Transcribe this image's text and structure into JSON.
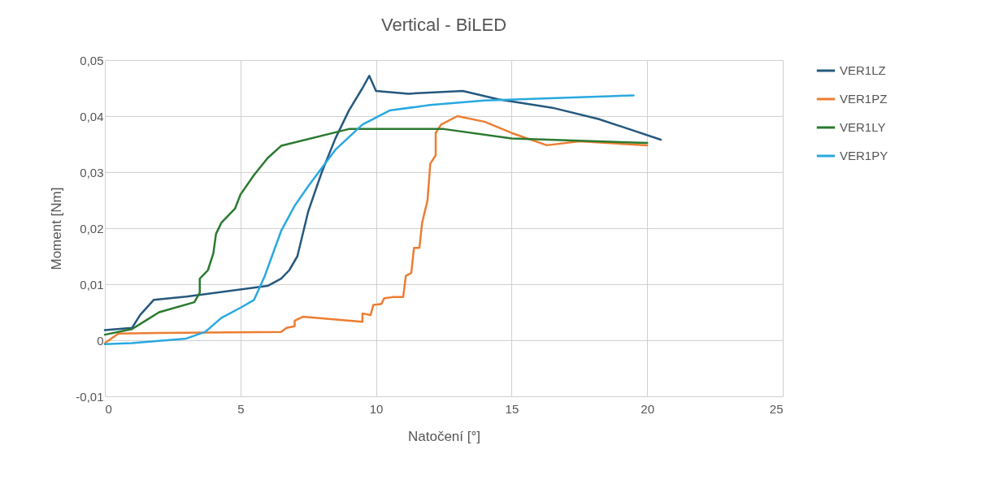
{
  "chart_data": {
    "type": "line",
    "title": "Vertical - BiLED",
    "xlabel": "Natočení [°]",
    "ylabel": "Moment [Nm]",
    "xlim": [
      0,
      25
    ],
    "xticks": [
      0,
      5,
      10,
      15,
      20,
      25
    ],
    "ylim": [
      -0.01,
      0.05
    ],
    "yticks": [
      {
        "value": -0.01,
        "label": "-0,01"
      },
      0,
      {
        "value": 0.01,
        "label": "0,01"
      },
      {
        "value": 0.02,
        "label": "0,02"
      },
      {
        "value": 0.03,
        "label": "0,03"
      },
      {
        "value": 0.04,
        "label": "0,04"
      },
      {
        "value": 0.05,
        "label": "0,05"
      }
    ],
    "grid": true,
    "legend": "right",
    "marker": "none",
    "line_style": "solid",
    "series": [
      {
        "name": "VER1LZ",
        "color": "#25587e",
        "x": [
          0,
          1,
          1.3,
          1.8,
          3,
          6,
          6.5,
          6.8,
          7.1,
          7.5,
          8,
          8.5,
          9,
          9.5,
          9.75,
          10,
          11.2,
          13.2,
          14.5,
          16.5,
          18.2,
          20.5
        ],
        "values": [
          0.0018,
          0.0022,
          0.0045,
          0.0072,
          0.0078,
          0.0097,
          0.011,
          0.0125,
          0.015,
          0.023,
          0.03,
          0.036,
          0.041,
          0.045,
          0.0472,
          0.0445,
          0.044,
          0.0445,
          0.043,
          0.0415,
          0.0395,
          0.0358
        ]
      },
      {
        "name": "VER1PZ",
        "color": "#ed7d31",
        "x": [
          0,
          0.5,
          2,
          6.5,
          6.7,
          7,
          7,
          7.3,
          9.5,
          9.5,
          9.8,
          9.9,
          10.2,
          10.3,
          10.6,
          11,
          11.1,
          11.3,
          11.4,
          11.6,
          11.7,
          11.9,
          12,
          12.2,
          12.2,
          12.4,
          13,
          14,
          15,
          16.3,
          17.5,
          20
        ],
        "values": [
          -0.0005,
          0.0012,
          0.0013,
          0.0015,
          0.0022,
          0.0025,
          0.0035,
          0.0042,
          0.0033,
          0.0048,
          0.0045,
          0.0063,
          0.0065,
          0.0075,
          0.0077,
          0.0077,
          0.0115,
          0.012,
          0.0165,
          0.0165,
          0.021,
          0.025,
          0.0315,
          0.033,
          0.037,
          0.0385,
          0.04,
          0.039,
          0.037,
          0.0348,
          0.0355,
          0.0348
        ]
      },
      {
        "name": "VER1LY",
        "color": "#2a7a30",
        "x": [
          0,
          1,
          1.5,
          2,
          3.3,
          3.5,
          3.5,
          3.8,
          4,
          4.1,
          4.3,
          4.8,
          5,
          5.5,
          6,
          6.5,
          9,
          12.5,
          15,
          20
        ],
        "values": [
          0.001,
          0.002,
          0.0035,
          0.005,
          0.0068,
          0.0085,
          0.011,
          0.0125,
          0.0155,
          0.019,
          0.021,
          0.0235,
          0.026,
          0.0295,
          0.0325,
          0.0347,
          0.0377,
          0.0377,
          0.036,
          0.0352
        ]
      },
      {
        "name": "VER1PY",
        "color": "#29a8e0",
        "x": [
          0,
          1,
          3,
          3.7,
          4.3,
          5,
          5.5,
          5.9,
          6.2,
          6.5,
          7,
          7.5,
          8.5,
          9.5,
          10.5,
          12,
          14,
          19.5
        ],
        "values": [
          -0.0007,
          -0.0005,
          0.0003,
          0.0015,
          0.004,
          0.0058,
          0.0072,
          0.0115,
          0.0155,
          0.0195,
          0.024,
          0.0275,
          0.034,
          0.0385,
          0.041,
          0.042,
          0.0428,
          0.0437
        ]
      }
    ]
  }
}
